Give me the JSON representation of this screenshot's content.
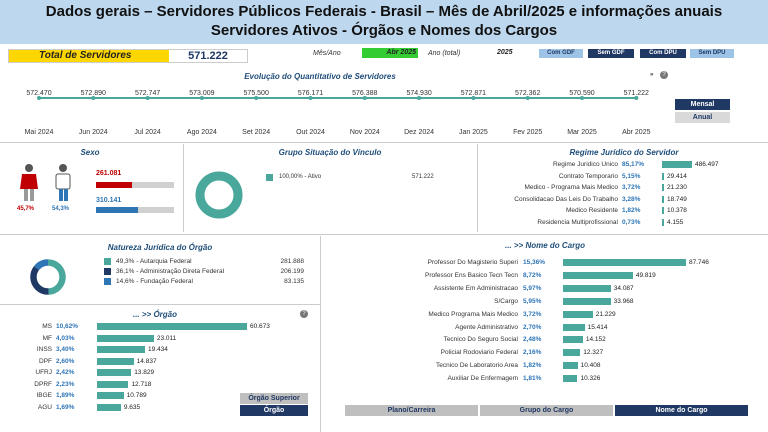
{
  "header": {
    "line1": "Dados gerais – Servidores Públicos Federais - Brasil – Mês de Abril/2025 e informações anuais",
    "line2": "Servidores Ativos - Órgãos e Nomes dos Cargos"
  },
  "total": {
    "label": "Total de Servidores",
    "value": "571.222"
  },
  "filters": {
    "mes_ano_label": "Mês/Ano",
    "mes_ano_value": "Abr 2025",
    "ano_label": "Ano (total)",
    "ano_value": "2025",
    "buttons": [
      "Com GDF",
      "Sem GDF",
      "Com DPU",
      "Sem DPU"
    ]
  },
  "evolution": {
    "title": "Evolução do Quantitativo de Servidores",
    "next_label": "» ",
    "values": [
      "572.470",
      "572.890",
      "572.747",
      "573.009",
      "575.500",
      "576.171",
      "576.388",
      "574.930",
      "572.871",
      "572.362",
      "570.590",
      "571.222"
    ],
    "months": [
      "Mai 2024",
      "Jun 2024",
      "Jul 2024",
      "Ago 2024",
      "Set 2024",
      "Out 2024",
      "Nov 2024",
      "Dez 2024",
      "Jan 2025",
      "Fev 2025",
      "Mar 2025",
      "Abr 2025"
    ],
    "toggle": [
      "Mensal",
      "Anual"
    ]
  },
  "sexo": {
    "title": "Sexo",
    "female_pct": "45,7%",
    "male_pct": "54,3%",
    "female_value": "261.081",
    "male_value": "310.141",
    "female_share": 0.457,
    "male_share": 0.543
  },
  "vinculo": {
    "title": "Grupo Situação do Vínculo",
    "legend": "100,00% - Ativo",
    "value": "571.222"
  },
  "regime": {
    "title": "Regime Jurídico do Servidor",
    "rows": [
      {
        "name": "Regime Juridico Unico",
        "pct": "85,17%",
        "value": "486.497",
        "n": 486497
      },
      {
        "name": "Contrato Temporario",
        "pct": "5,15%",
        "value": "29.414",
        "n": 29414
      },
      {
        "name": "Medico - Programa Mais Medico",
        "pct": "3,72%",
        "value": "21.230",
        "n": 21230
      },
      {
        "name": "Consolidacao Das Leis Do Trabalho",
        "pct": "3,28%",
        "value": "18.749",
        "n": 18749
      },
      {
        "name": "Medico Residente",
        "pct": "1,82%",
        "value": "10.378",
        "n": 10378
      },
      {
        "name": "Residencia Multiprofissional",
        "pct": "0,73%",
        "value": "4.155",
        "n": 4155
      }
    ]
  },
  "natureza": {
    "title": "Natureza Jurídica do Órgão",
    "rows": [
      {
        "label": "49,3% - Autarquia Federal",
        "value": "281.888",
        "share": 0.493,
        "color": "#4aa79b"
      },
      {
        "label": "36,1% - Administração Direta Federal",
        "value": "206.199",
        "share": 0.361,
        "color": "#1f3864"
      },
      {
        "label": "14,6% - Fundação Federal",
        "value": "83.135",
        "share": 0.146,
        "color": "#2e75b6"
      }
    ]
  },
  "orgao": {
    "title": "... >> Órgão",
    "rows": [
      {
        "name": "MS",
        "pct": "10,62%",
        "value": "60.673",
        "n": 60673
      },
      {
        "name": "MF",
        "pct": "4,03%",
        "value": "23.011",
        "n": 23011
      },
      {
        "name": "INSS",
        "pct": "3,40%",
        "value": "19.434",
        "n": 19434
      },
      {
        "name": "DPF",
        "pct": "2,60%",
        "value": "14.837",
        "n": 14837
      },
      {
        "name": "UFRJ",
        "pct": "2,42%",
        "value": "13.829",
        "n": 13829
      },
      {
        "name": "DPRF",
        "pct": "2,23%",
        "value": "12.718",
        "n": 12718
      },
      {
        "name": "IBGE",
        "pct": "1,89%",
        "value": "10.789",
        "n": 10789
      },
      {
        "name": "AGU",
        "pct": "1,69%",
        "value": "9.635",
        "n": 9635
      }
    ],
    "buttons": [
      "Órgão Superior",
      "Órgão"
    ]
  },
  "cargo": {
    "title": "... >> Nome do Cargo",
    "rows": [
      {
        "name": "Professor Do Magisterio Superi",
        "pct": "15,36%",
        "value": "87.746",
        "n": 87746
      },
      {
        "name": "Professor Ens Basico Tecn Tecn",
        "pct": "8,72%",
        "value": "49.819",
        "n": 49819
      },
      {
        "name": "Assistente Em Administracao",
        "pct": "5,97%",
        "value": "34.087",
        "n": 34087
      },
      {
        "name": "S/Cargo",
        "pct": "5,95%",
        "value": "33.968",
        "n": 33968
      },
      {
        "name": "Medico Programa Mais Medico",
        "pct": "3,72%",
        "value": "21.229",
        "n": 21229
      },
      {
        "name": "Agente Administrativo",
        "pct": "2,70%",
        "value": "15.414",
        "n": 15414
      },
      {
        "name": "Tecnico Do Seguro Social",
        "pct": "2,48%",
        "value": "14.152",
        "n": 14152
      },
      {
        "name": "Policial Rodoviario Federal",
        "pct": "2,16%",
        "value": "12.327",
        "n": 12327
      },
      {
        "name": "Tecnico De Laboratorio Area",
        "pct": "1,82%",
        "value": "10.408",
        "n": 10408
      },
      {
        "name": "Auxiliar De Enfermagem",
        "pct": "1,81%",
        "value": "10.326",
        "n": 10326
      }
    ]
  },
  "bottom_tabs": [
    "Plano/Carreira",
    "Grupo do Cargo",
    "Nome do Cargo"
  ]
}
